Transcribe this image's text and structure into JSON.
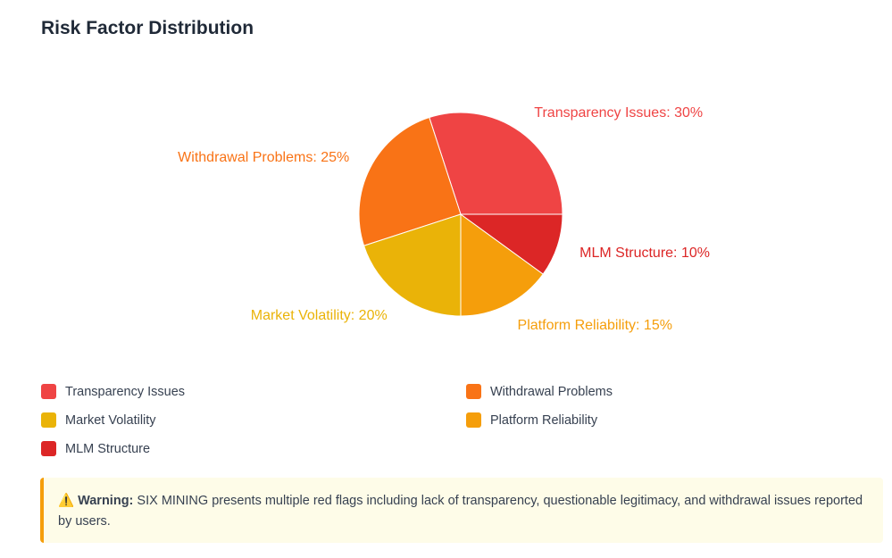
{
  "title": "Risk Factor Distribution",
  "chart_data": {
    "type": "pie",
    "title": "Risk Factor Distribution",
    "slices": [
      {
        "name": "Transparency Issues",
        "value": 30,
        "color": "#ef4444",
        "label": "Transparency Issues: 30%"
      },
      {
        "name": "Withdrawal Problems",
        "value": 25,
        "color": "#f97316",
        "label": "Withdrawal Problems: 25%"
      },
      {
        "name": "Market Volatility",
        "value": 20,
        "color": "#eab308",
        "label": "Market Volatility: 20%"
      },
      {
        "name": "Platform Reliability",
        "value": 15,
        "color": "#f59e0b",
        "label": "Platform Reliability: 15%"
      },
      {
        "name": "MLM Structure",
        "value": 10,
        "color": "#dc2626",
        "label": "MLM Structure: 10%"
      }
    ],
    "legend": "bottom"
  },
  "warning": {
    "icon": "warning-triangle-icon",
    "label": "Warning:",
    "text": "SIX MINING presents multiple red flags including lack of transparency, questionable legitimacy, and withdrawal issues reported by users."
  }
}
